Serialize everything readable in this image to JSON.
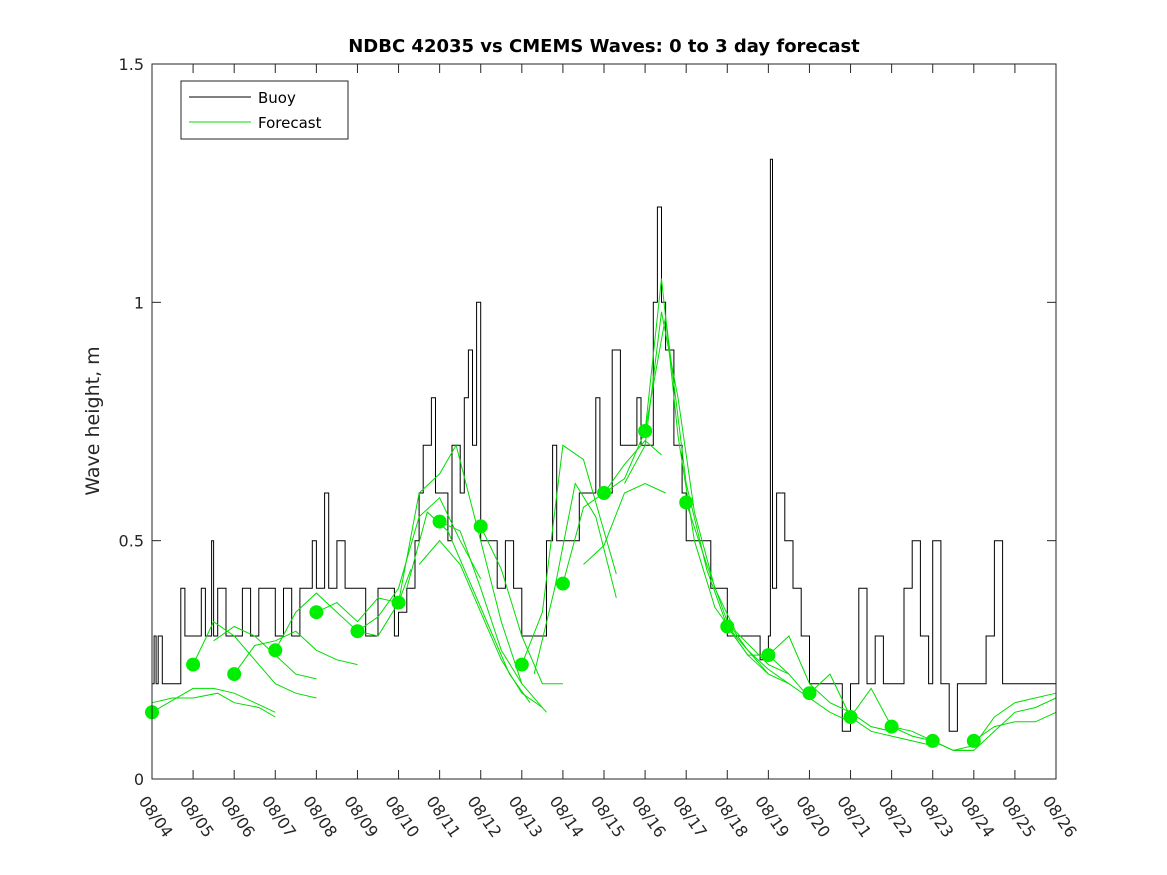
{
  "chart_data": {
    "type": "line",
    "title": "NDBC 42035 vs CMEMS Waves: 0 to 3 day forecast",
    "xlabel": "",
    "ylabel": "Wave height, m",
    "x_tick_labels": [
      "08/04",
      "08/05",
      "08/06",
      "08/07",
      "08/08",
      "08/09",
      "08/10",
      "08/11",
      "08/12",
      "08/13",
      "08/14",
      "08/15",
      "08/16",
      "08/17",
      "08/18",
      "08/19",
      "08/20",
      "08/21",
      "08/22",
      "08/23",
      "08/24",
      "08/25",
      "08/26"
    ],
    "xlim_days": [
      0,
      22
    ],
    "ylim": [
      0,
      1.5
    ],
    "y_ticks": [
      0,
      0.5,
      1,
      1.5
    ],
    "y_tick_labels": [
      "0",
      "0.5",
      "1",
      "1.5"
    ],
    "legend": {
      "position": "top-left",
      "entries": [
        {
          "label": "Buoy",
          "color": "#000000"
        },
        {
          "label": "Forecast",
          "color": "#00dd00"
        }
      ]
    },
    "colors": {
      "buoy": "#000000",
      "forecast": "#00dd00",
      "marker": "#00ee00"
    },
    "buoy": [
      [
        0.0,
        0.2
      ],
      [
        0.05,
        0.3
      ],
      [
        0.1,
        0.2
      ],
      [
        0.15,
        0.3
      ],
      [
        0.25,
        0.2
      ],
      [
        0.35,
        0.2
      ],
      [
        0.5,
        0.2
      ],
      [
        0.7,
        0.4
      ],
      [
        0.8,
        0.3
      ],
      [
        1.0,
        0.3
      ],
      [
        1.2,
        0.4
      ],
      [
        1.3,
        0.3
      ],
      [
        1.45,
        0.5
      ],
      [
        1.5,
        0.3
      ],
      [
        1.6,
        0.4
      ],
      [
        1.8,
        0.3
      ],
      [
        2.0,
        0.3
      ],
      [
        2.2,
        0.4
      ],
      [
        2.4,
        0.3
      ],
      [
        2.6,
        0.4
      ],
      [
        2.9,
        0.4
      ],
      [
        3.0,
        0.3
      ],
      [
        3.2,
        0.4
      ],
      [
        3.4,
        0.3
      ],
      [
        3.6,
        0.4
      ],
      [
        3.9,
        0.5
      ],
      [
        4.0,
        0.4
      ],
      [
        4.2,
        0.6
      ],
      [
        4.3,
        0.4
      ],
      [
        4.5,
        0.5
      ],
      [
        4.7,
        0.4
      ],
      [
        5.0,
        0.4
      ],
      [
        5.2,
        0.3
      ],
      [
        5.5,
        0.4
      ],
      [
        5.9,
        0.3
      ],
      [
        6.0,
        0.35
      ],
      [
        6.2,
        0.4
      ],
      [
        6.4,
        0.5
      ],
      [
        6.5,
        0.6
      ],
      [
        6.6,
        0.7
      ],
      [
        6.8,
        0.8
      ],
      [
        6.9,
        0.6
      ],
      [
        7.0,
        0.6
      ],
      [
        7.2,
        0.5
      ],
      [
        7.3,
        0.7
      ],
      [
        7.5,
        0.6
      ],
      [
        7.6,
        0.8
      ],
      [
        7.7,
        0.9
      ],
      [
        7.8,
        0.7
      ],
      [
        7.9,
        1.0
      ],
      [
        8.0,
        0.5
      ],
      [
        8.2,
        0.5
      ],
      [
        8.4,
        0.4
      ],
      [
        8.6,
        0.5
      ],
      [
        8.8,
        0.4
      ],
      [
        9.0,
        0.3
      ],
      [
        9.5,
        0.3
      ],
      [
        9.6,
        0.5
      ],
      [
        9.75,
        0.7
      ],
      [
        9.85,
        0.5
      ],
      [
        10.0,
        0.5
      ],
      [
        10.2,
        0.5
      ],
      [
        10.4,
        0.6
      ],
      [
        10.6,
        0.6
      ],
      [
        10.8,
        0.8
      ],
      [
        10.9,
        0.6
      ],
      [
        11.0,
        0.6
      ],
      [
        11.2,
        0.9
      ],
      [
        11.4,
        0.7
      ],
      [
        11.6,
        0.7
      ],
      [
        11.8,
        0.8
      ],
      [
        11.9,
        0.7
      ],
      [
        12.1,
        0.7
      ],
      [
        12.2,
        1.0
      ],
      [
        12.3,
        1.2
      ],
      [
        12.4,
        1.0
      ],
      [
        12.5,
        0.9
      ],
      [
        12.7,
        0.7
      ],
      [
        12.9,
        0.6
      ],
      [
        13.0,
        0.5
      ],
      [
        13.3,
        0.5
      ],
      [
        13.6,
        0.4
      ],
      [
        14.0,
        0.3
      ],
      [
        14.3,
        0.3
      ],
      [
        14.6,
        0.3
      ],
      [
        14.8,
        0.25
      ],
      [
        15.0,
        0.3
      ],
      [
        15.05,
        1.3
      ],
      [
        15.1,
        0.4
      ],
      [
        15.2,
        0.6
      ],
      [
        15.4,
        0.5
      ],
      [
        15.6,
        0.4
      ],
      [
        15.8,
        0.3
      ],
      [
        16.0,
        0.2
      ],
      [
        16.5,
        0.2
      ],
      [
        16.8,
        0.1
      ],
      [
        17.0,
        0.2
      ],
      [
        17.2,
        0.4
      ],
      [
        17.4,
        0.2
      ],
      [
        17.6,
        0.3
      ],
      [
        17.8,
        0.2
      ],
      [
        18.0,
        0.2
      ],
      [
        18.3,
        0.4
      ],
      [
        18.5,
        0.5
      ],
      [
        18.7,
        0.3
      ],
      [
        18.9,
        0.2
      ],
      [
        19.0,
        0.5
      ],
      [
        19.2,
        0.2
      ],
      [
        19.4,
        0.1
      ],
      [
        19.6,
        0.2
      ],
      [
        19.8,
        0.2
      ],
      [
        20.0,
        0.2
      ],
      [
        20.3,
        0.3
      ],
      [
        20.5,
        0.5
      ],
      [
        20.7,
        0.2
      ],
      [
        21.0,
        0.2
      ],
      [
        21.5,
        0.2
      ],
      [
        22.0,
        0.2
      ]
    ],
    "forecast_dots": [
      {
        "x": 0,
        "y": 0.14
      },
      {
        "x": 1,
        "y": 0.24
      },
      {
        "x": 2,
        "y": 0.22
      },
      {
        "x": 3,
        "y": 0.27
      },
      {
        "x": 4,
        "y": 0.35
      },
      {
        "x": 5,
        "y": 0.31
      },
      {
        "x": 6,
        "y": 0.37
      },
      {
        "x": 7,
        "y": 0.54
      },
      {
        "x": 8,
        "y": 0.53
      },
      {
        "x": 9,
        "y": 0.24
      },
      {
        "x": 10,
        "y": 0.41
      },
      {
        "x": 11,
        "y": 0.6
      },
      {
        "x": 12,
        "y": 0.73
      },
      {
        "x": 13,
        "y": 0.58
      },
      {
        "x": 14,
        "y": 0.32
      },
      {
        "x": 15,
        "y": 0.26
      },
      {
        "x": 16,
        "y": 0.18
      },
      {
        "x": 17,
        "y": 0.13
      },
      {
        "x": 18,
        "y": 0.11
      },
      {
        "x": 19,
        "y": 0.08
      },
      {
        "x": 20,
        "y": 0.08
      }
    ],
    "forecast_series": [
      [
        [
          0.0,
          0.14
        ],
        [
          0.4,
          0.16
        ],
        [
          1.0,
          0.19
        ],
        [
          1.5,
          0.19
        ],
        [
          2.0,
          0.18
        ],
        [
          2.5,
          0.16
        ],
        [
          3.0,
          0.14
        ]
      ],
      [
        [
          0.0,
          0.16
        ],
        [
          0.5,
          0.17
        ],
        [
          1.0,
          0.17
        ],
        [
          1.6,
          0.18
        ],
        [
          2.0,
          0.16
        ],
        [
          2.6,
          0.15
        ],
        [
          3.0,
          0.13
        ]
      ],
      [
        [
          1.0,
          0.24
        ],
        [
          1.5,
          0.33
        ],
        [
          2.0,
          0.3
        ],
        [
          2.5,
          0.25
        ],
        [
          3.0,
          0.2
        ],
        [
          3.5,
          0.18
        ],
        [
          4.0,
          0.17
        ]
      ],
      [
        [
          1.5,
          0.29
        ],
        [
          2.0,
          0.32
        ],
        [
          2.5,
          0.3
        ],
        [
          3.0,
          0.26
        ],
        [
          3.5,
          0.22
        ],
        [
          4.0,
          0.21
        ]
      ],
      [
        [
          2.0,
          0.22
        ],
        [
          2.5,
          0.28
        ],
        [
          3.0,
          0.29
        ],
        [
          3.5,
          0.31
        ],
        [
          4.0,
          0.27
        ],
        [
          4.5,
          0.25
        ],
        [
          5.0,
          0.24
        ]
      ],
      [
        [
          3.0,
          0.27
        ],
        [
          3.5,
          0.35
        ],
        [
          4.0,
          0.39
        ],
        [
          4.5,
          0.35
        ],
        [
          5.0,
          0.31
        ],
        [
          5.5,
          0.3
        ],
        [
          6.0,
          0.37
        ]
      ],
      [
        [
          4.0,
          0.35
        ],
        [
          4.5,
          0.37
        ],
        [
          5.0,
          0.33
        ],
        [
          5.5,
          0.38
        ],
        [
          6.0,
          0.37
        ],
        [
          6.3,
          0.44
        ]
      ],
      [
        [
          5.0,
          0.31
        ],
        [
          5.5,
          0.34
        ],
        [
          6.0,
          0.4
        ],
        [
          6.5,
          0.55
        ],
        [
          7.0,
          0.59
        ],
        [
          7.5,
          0.5
        ],
        [
          8.0,
          0.42
        ]
      ],
      [
        [
          6.0,
          0.37
        ],
        [
          6.5,
          0.6
        ],
        [
          7.0,
          0.64
        ],
        [
          7.4,
          0.7
        ],
        [
          8.0,
          0.5
        ],
        [
          8.5,
          0.33
        ],
        [
          9.0,
          0.2
        ]
      ],
      [
        [
          6.2,
          0.4
        ],
        [
          6.7,
          0.56
        ],
        [
          7.2,
          0.52
        ],
        [
          7.7,
          0.42
        ],
        [
          8.2,
          0.32
        ],
        [
          8.7,
          0.22
        ],
        [
          9.2,
          0.16
        ]
      ],
      [
        [
          6.5,
          0.45
        ],
        [
          7.0,
          0.5
        ],
        [
          7.5,
          0.45
        ],
        [
          8.0,
          0.35
        ],
        [
          8.5,
          0.25
        ],
        [
          9.0,
          0.18
        ],
        [
          9.5,
          0.15
        ]
      ],
      [
        [
          7.0,
          0.54
        ],
        [
          7.5,
          0.52
        ],
        [
          8.0,
          0.4
        ],
        [
          8.5,
          0.27
        ],
        [
          9.0,
          0.2
        ],
        [
          9.6,
          0.14
        ]
      ],
      [
        [
          8.0,
          0.53
        ],
        [
          8.5,
          0.44
        ],
        [
          9.0,
          0.3
        ],
        [
          9.5,
          0.2
        ],
        [
          10.0,
          0.2
        ]
      ],
      [
        [
          9.0,
          0.24
        ],
        [
          9.5,
          0.35
        ],
        [
          10.0,
          0.7
        ],
        [
          10.5,
          0.67
        ],
        [
          11.0,
          0.52
        ],
        [
          11.3,
          0.43
        ]
      ],
      [
        [
          9.3,
          0.22
        ],
        [
          9.8,
          0.4
        ],
        [
          10.3,
          0.62
        ],
        [
          10.8,
          0.55
        ],
        [
          11.3,
          0.38
        ]
      ],
      [
        [
          10.0,
          0.41
        ],
        [
          10.5,
          0.57
        ],
        [
          11.0,
          0.6
        ],
        [
          11.5,
          0.66
        ],
        [
          12.0,
          0.71
        ],
        [
          12.4,
          0.68
        ]
      ],
      [
        [
          10.5,
          0.45
        ],
        [
          11.0,
          0.49
        ],
        [
          11.5,
          0.6
        ],
        [
          12.0,
          0.62
        ],
        [
          12.5,
          0.6
        ]
      ],
      [
        [
          11.0,
          0.6
        ],
        [
          11.5,
          0.63
        ],
        [
          12.0,
          0.73
        ],
        [
          12.4,
          1.05
        ],
        [
          12.8,
          0.72
        ],
        [
          13.2,
          0.5
        ],
        [
          13.7,
          0.36
        ],
        [
          14.2,
          0.3
        ],
        [
          15.0,
          0.22
        ],
        [
          15.5,
          0.2
        ]
      ],
      [
        [
          11.5,
          0.62
        ],
        [
          12.0,
          0.7
        ],
        [
          12.4,
          0.98
        ],
        [
          12.8,
          0.8
        ],
        [
          13.2,
          0.56
        ],
        [
          13.7,
          0.4
        ],
        [
          14.2,
          0.31
        ],
        [
          15.0,
          0.24
        ],
        [
          15.5,
          0.22
        ]
      ],
      [
        [
          12.0,
          0.73
        ],
        [
          12.5,
          0.97
        ],
        [
          13.0,
          0.62
        ],
        [
          13.5,
          0.44
        ],
        [
          14.0,
          0.32
        ],
        [
          14.5,
          0.26
        ],
        [
          15.0,
          0.22
        ]
      ],
      [
        [
          13.0,
          0.58
        ],
        [
          13.5,
          0.45
        ],
        [
          14.0,
          0.33
        ],
        [
          14.5,
          0.27
        ],
        [
          15.0,
          0.23
        ],
        [
          15.5,
          0.2
        ],
        [
          16.0,
          0.17
        ]
      ],
      [
        [
          14.0,
          0.32
        ],
        [
          14.5,
          0.26
        ],
        [
          15.0,
          0.26
        ],
        [
          15.5,
          0.22
        ],
        [
          16.0,
          0.17
        ],
        [
          16.5,
          0.14
        ],
        [
          17.0,
          0.12
        ]
      ],
      [
        [
          15.0,
          0.26
        ],
        [
          15.5,
          0.3
        ],
        [
          16.0,
          0.2
        ],
        [
          16.5,
          0.16
        ],
        [
          17.0,
          0.14
        ],
        [
          17.5,
          0.11
        ],
        [
          18.0,
          0.1
        ]
      ],
      [
        [
          16.0,
          0.18
        ],
        [
          16.5,
          0.22
        ],
        [
          17.0,
          0.13
        ],
        [
          17.5,
          0.1
        ],
        [
          18.0,
          0.09
        ],
        [
          18.5,
          0.08
        ],
        [
          19.0,
          0.07
        ]
      ],
      [
        [
          17.0,
          0.13
        ],
        [
          17.5,
          0.19
        ],
        [
          18.0,
          0.11
        ],
        [
          18.5,
          0.09
        ],
        [
          19.0,
          0.08
        ],
        [
          19.5,
          0.06
        ],
        [
          20.0,
          0.06
        ]
      ],
      [
        [
          18.0,
          0.11
        ],
        [
          18.5,
          0.1
        ],
        [
          19.0,
          0.08
        ],
        [
          19.5,
          0.06
        ],
        [
          20.0,
          0.07
        ],
        [
          20.5,
          0.13
        ],
        [
          21.0,
          0.16
        ],
        [
          22.0,
          0.18
        ]
      ],
      [
        [
          19.0,
          0.08
        ],
        [
          19.5,
          0.06
        ],
        [
          20.0,
          0.06
        ],
        [
          20.5,
          0.1
        ],
        [
          21.0,
          0.14
        ],
        [
          21.5,
          0.15
        ],
        [
          22.0,
          0.17
        ]
      ],
      [
        [
          20.0,
          0.08
        ],
        [
          20.5,
          0.11
        ],
        [
          21.0,
          0.12
        ],
        [
          21.5,
          0.12
        ],
        [
          22.0,
          0.14
        ]
      ]
    ]
  }
}
